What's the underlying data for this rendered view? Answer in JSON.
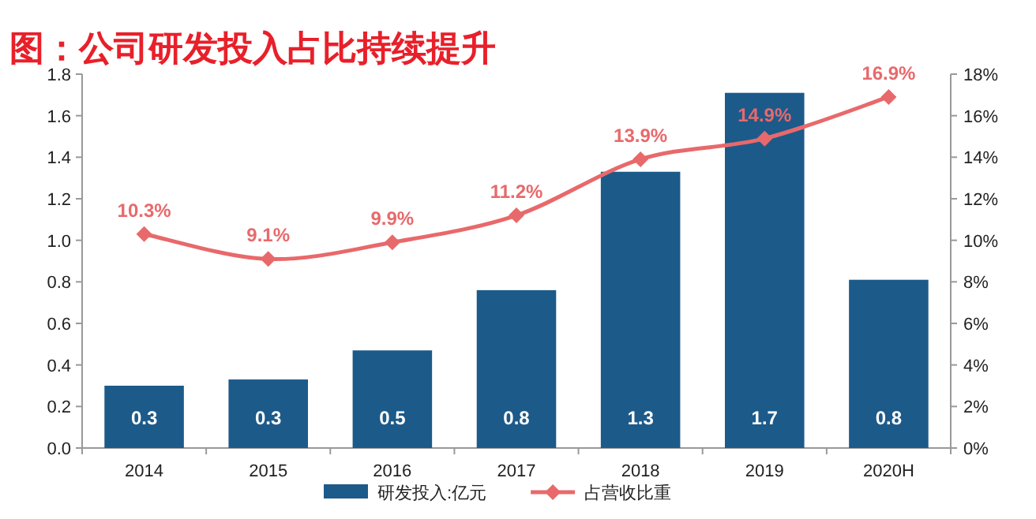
{
  "chart_data": {
    "type": "bar",
    "title": "图：公司研发投入占比持续提升",
    "categories": [
      "2014",
      "2015",
      "2016",
      "2017",
      "2018",
      "2019",
      "2020H"
    ],
    "series": [
      {
        "name": "研发投入:亿元",
        "color": "#1c5a8a",
        "values": [
          0.3,
          0.33,
          0.47,
          0.76,
          1.33,
          1.71,
          0.81
        ],
        "value_labels": [
          "0.3",
          "0.3",
          "0.5",
          "0.8",
          "1.3",
          "1.7",
          "0.8"
        ]
      },
      {
        "name": "占营收比重",
        "type": "line",
        "axis": "y2",
        "color": "#e8696b",
        "marker": "diamond",
        "values": [
          10.3,
          9.1,
          9.9,
          11.2,
          13.9,
          14.9,
          16.9
        ],
        "value_labels": [
          "10.3%",
          "9.1%",
          "9.9%",
          "11.2%",
          "13.9%",
          "14.9%",
          "16.9%"
        ]
      }
    ],
    "ylim": [
      0,
      1.8
    ],
    "yticks": [
      {
        "value": 0,
        "label": "0.0"
      },
      {
        "value": 0.2,
        "label": "0.2"
      },
      {
        "value": 0.4,
        "label": "0.4"
      },
      {
        "value": 0.6,
        "label": "0.6"
      },
      {
        "value": 0.8,
        "label": "0.8"
      },
      {
        "value": 1.0,
        "label": "1.0"
      },
      {
        "value": 1.2,
        "label": "1.2"
      },
      {
        "value": 1.4,
        "label": "1.4"
      },
      {
        "value": 1.6,
        "label": "1.6"
      },
      {
        "value": 1.8,
        "label": "1.8"
      }
    ],
    "y2lim": [
      0,
      18
    ],
    "y2ticks": [
      {
        "value": 0,
        "label": "0%"
      },
      {
        "value": 2,
        "label": "2%"
      },
      {
        "value": 4,
        "label": "4%"
      },
      {
        "value": 6,
        "label": "6%"
      },
      {
        "value": 8,
        "label": "8%"
      },
      {
        "value": 10,
        "label": "10%"
      },
      {
        "value": 12,
        "label": "12%"
      },
      {
        "value": 14,
        "label": "14%"
      },
      {
        "value": 16,
        "label": "16%"
      },
      {
        "value": 18,
        "label": "18%"
      }
    ],
    "legend": "bottom",
    "grid": false
  }
}
